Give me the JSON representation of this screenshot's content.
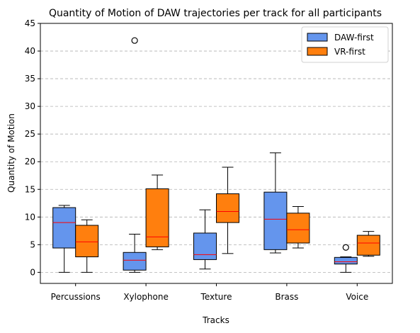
{
  "chart_data": {
    "type": "box",
    "title": "Quantity of Motion of DAW trajectories per track for all participants",
    "xlabel": "Tracks",
    "ylabel": "Quantity of Motion",
    "ylim": [
      -2,
      45
    ],
    "yticks": [
      0,
      5,
      10,
      15,
      20,
      25,
      30,
      35,
      40,
      45
    ],
    "grid": "horizontal-dashed",
    "legend_position": "top-right",
    "categories": [
      "Percussions",
      "Xylophone",
      "Texture",
      "Brass",
      "Voice"
    ],
    "series": [
      {
        "name": "DAW-first",
        "color": "#6495ED",
        "boxes": [
          {
            "whisker_low": 0,
            "q1": 4.4,
            "median": 9,
            "q3": 11.7,
            "whisker_high": 12.1,
            "outliers": []
          },
          {
            "whisker_low": 0,
            "q1": 0.4,
            "median": 2.2,
            "q3": 3.6,
            "whisker_high": 6.9,
            "outliers": [
              41.9
            ]
          },
          {
            "whisker_low": 0.6,
            "q1": 2.3,
            "median": 3.2,
            "q3": 7.1,
            "whisker_high": 11.3,
            "outliers": []
          },
          {
            "whisker_low": 3.5,
            "q1": 4.1,
            "median": 9.6,
            "q3": 14.5,
            "whisker_high": 21.6,
            "outliers": []
          },
          {
            "whisker_low": 0,
            "q1": 1.5,
            "median": 1.9,
            "q3": 2.7,
            "whisker_high": 2.8,
            "outliers": [
              4.5
            ]
          }
        ]
      },
      {
        "name": "VR-first",
        "color": "#FF7F0E",
        "boxes": [
          {
            "whisker_low": 0,
            "q1": 2.8,
            "median": 5.5,
            "q3": 8.5,
            "whisker_high": 9.5,
            "outliers": []
          },
          {
            "whisker_low": 4.1,
            "q1": 4.6,
            "median": 6.4,
            "q3": 15.1,
            "whisker_high": 17.6,
            "outliers": []
          },
          {
            "whisker_low": 3.4,
            "q1": 9,
            "median": 11,
            "q3": 14.2,
            "whisker_high": 19,
            "outliers": []
          },
          {
            "whisker_low": 4.4,
            "q1": 5.3,
            "median": 7.7,
            "q3": 10.7,
            "whisker_high": 11.9,
            "outliers": []
          },
          {
            "whisker_low": 2.9,
            "q1": 3.1,
            "median": 5.3,
            "q3": 6.7,
            "whisker_high": 7.4,
            "outliers": []
          }
        ]
      }
    ],
    "median_color": "#FF0000"
  }
}
